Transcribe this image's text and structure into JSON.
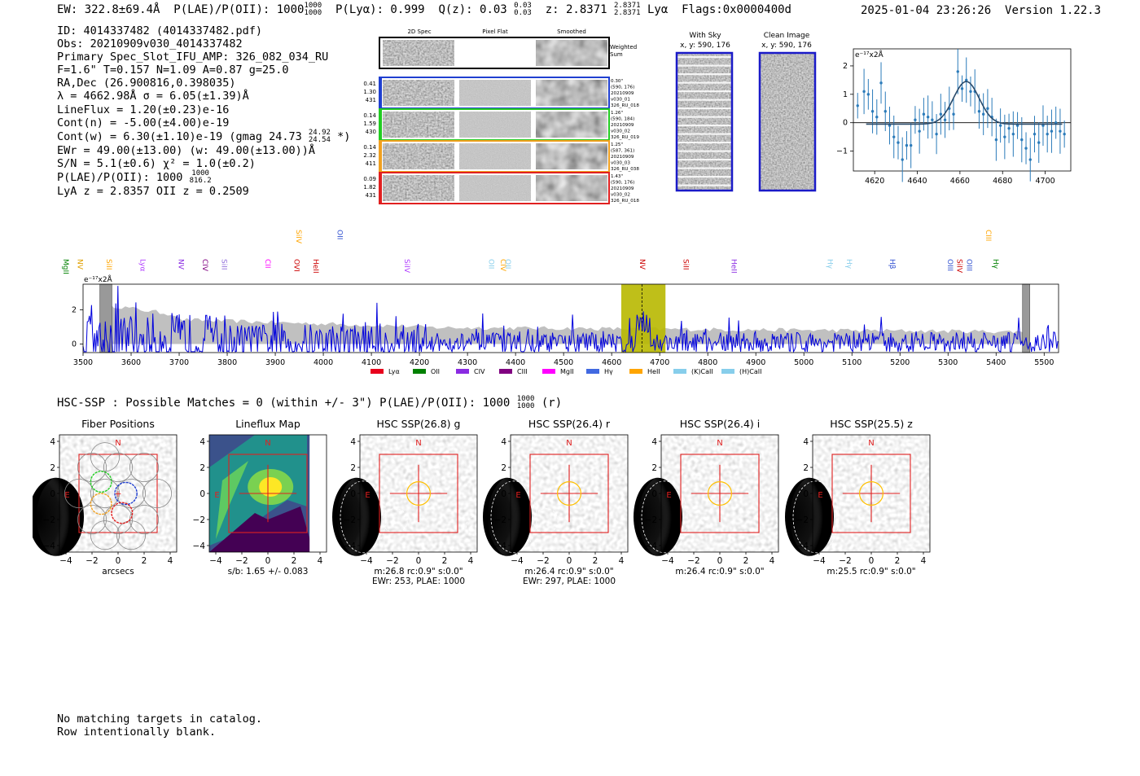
{
  "header": {
    "ew": "EW: 322.8±69.4Å",
    "plae_label": "P(LAE)/P(OII): 1000",
    "plae_hi": "1000",
    "plae_lo": "1000",
    "plya": "P(Lyα): 0.999",
    "qz_label": "Q(z): 0.03",
    "qz_hi": "0.03",
    "qz_lo": "0.03",
    "z_label": "z: 2.8371",
    "z_hi": "2.8371",
    "z_lo": "2.8371",
    "z_line": "Lyα",
    "flags": "Flags:0x0000400d",
    "datetime": "2025-01-04 23:26:26",
    "version": "Version 1.22.3"
  },
  "info": {
    "id": "ID: 4014337482 (4014337482.pdf)",
    "obs": "Obs: 20210909v030_4014337482",
    "primary": "Primary Spec_Slot_IFU_AMP: 326_082_034_RU",
    "fwhm": "F=1.6\"  T=0.157  N=1.09  A=0.87  g=25.0",
    "radec": "RA,Dec (26.900816,0.398035)",
    "lambda": "λ = 4662.98Å  σ = 6.05(±1.39)Å",
    "lineflux": "LineFlux = 1.20(±0.23)e-16",
    "contn": "Cont(n) = -5.00(±4.00)e-19",
    "contw": "Cont(w) = 6.30(±1.10)e-19 (gmag 24.73",
    "gmag_hi": "24.92",
    "gmag_lo": "24.54",
    "contw_end": "*)",
    "ewr": "EWr = 49.00(±13.00) (w: 49.00(±13.00))Å",
    "sn": "S/N = 5.1(±0.6)  χ² = 1.0(±0.2)",
    "plae": "P(LAE)/P(OII): 1000",
    "plae_hi": "1000",
    "plae_lo": "816.2",
    "lyaz": "LyA z = 2.8357  OII z = 0.2509"
  },
  "cutouts": {
    "col_titles": [
      "2D Spec",
      "Pixel Flat",
      "Smoothed"
    ],
    "weighted_sum": "Weighted Sum",
    "rows": [
      {
        "left": [
          "0.41",
          "1.30",
          "431"
        ],
        "right": [
          "0.30\"",
          "(590, 176)",
          "20210909",
          "v030_01",
          "326_RU_018"
        ],
        "color": "#1f3fd0"
      },
      {
        "left": [
          "0.14",
          "1.59",
          "430"
        ],
        "right": [
          "1.26\"",
          "(590, 184)",
          "20210909",
          "v030_02",
          "326_RU_019"
        ],
        "color": "#22cc22"
      },
      {
        "left": [
          "0.14",
          "2.32",
          "411"
        ],
        "right": [
          "1.25\"",
          "(587, 361)",
          "20210909",
          "v030_03",
          "326_RU_038"
        ],
        "color": "#f0a020"
      },
      {
        "left": [
          "0.09",
          "1.82",
          "431"
        ],
        "right": [
          "1.43\"",
          "(590, 176)",
          "20210909",
          "v030_02",
          "326_RU_018"
        ],
        "color": "#e02020"
      }
    ],
    "with_sky_title": "With Sky",
    "with_sky_coords": "x, y: 590, 176",
    "clean_title": "Clean Image",
    "clean_coords": "x, y: 590, 176"
  },
  "zoom_plot": {
    "unit_label": "e⁻¹⁷x2Å",
    "xticks": [
      "4620",
      "4640",
      "4660",
      "4680",
      "4700"
    ],
    "yticks": [
      "2",
      "1",
      "0",
      "−1"
    ],
    "xlim": [
      4610,
      4712
    ],
    "ylim": [
      -1.7,
      2.6
    ],
    "points_x": [
      4612,
      4615,
      4617,
      4619,
      4621,
      4623,
      4625,
      4627,
      4629,
      4631,
      4633,
      4635,
      4637,
      4639,
      4641,
      4643,
      4645,
      4647,
      4649,
      4651,
      4653,
      4655,
      4657,
      4659,
      4661,
      4663,
      4665,
      4667,
      4669,
      4671,
      4673,
      4675,
      4677,
      4679,
      4681,
      4683,
      4685,
      4687,
      4689,
      4691,
      4693,
      4695,
      4697,
      4699,
      4701,
      4703,
      4705,
      4707,
      4709
    ],
    "points_y": [
      0.6,
      1.1,
      1.0,
      0.4,
      0.2,
      1.4,
      0.4,
      -0.1,
      -0.5,
      -0.7,
      -1.3,
      -0.8,
      -0.8,
      0.1,
      -0.3,
      0.3,
      0.2,
      0.1,
      -0.4,
      0.3,
      0.1,
      0.5,
      0.3,
      1.8,
      1.2,
      1.5,
      1.1,
      1.1,
      0.4,
      0.3,
      0.5,
      0.2,
      -0.6,
      -0.1,
      -0.5,
      -0.2,
      -0.4,
      -0.1,
      -0.6,
      -0.9,
      -1.3,
      -0.4,
      -0.7,
      -0.1,
      -0.4,
      -0.3,
      0.0,
      -0.3,
      -0.4
    ],
    "fit_center": 4662.98,
    "fit_sigma": 6.05,
    "fit_amp": 1.5,
    "fit_base": -0.05
  },
  "line_labels": [
    {
      "name": "MgII",
      "x": 2799,
      "color": "#008000",
      "row": 1
    },
    {
      "name": "NV",
      "x": 1240,
      "color": "#e0a000",
      "row": 1
    },
    {
      "name": "SiII",
      "x": 1260,
      "color": "#ffa500",
      "row": 1
    },
    {
      "name": "Lyα",
      "x": 1216,
      "color": "#b03cff",
      "row": 1
    },
    {
      "name": "NV",
      "x": 1240,
      "color": "#8a2be2",
      "row": 1
    },
    {
      "name": "CIV",
      "x": 1549,
      "color": "#800080",
      "row": 1
    },
    {
      "name": "SiII",
      "x": 1260,
      "color": "#9370db",
      "row": 1
    },
    {
      "name": "CII",
      "x": 1335,
      "color": "#ff00ff",
      "row": 1
    },
    {
      "name": "OVI",
      "x": 1034,
      "color": "#cc0000",
      "row": 1
    },
    {
      "name": "SiIV",
      "x": 1400,
      "color": "#ffa500",
      "row": 0
    },
    {
      "name": "HeII",
      "x": 1640,
      "color": "#cc0000",
      "row": 1
    },
    {
      "name": "OII",
      "x": 3727,
      "color": "#3050d0",
      "row": 0
    },
    {
      "name": "SiIV",
      "x": 1400,
      "color": "#b03cff",
      "row": 1
    },
    {
      "name": "OII",
      "x": 3727,
      "color": "#87ceeb",
      "row": 1
    },
    {
      "name": "CIV",
      "x": 1549,
      "color": "#ffa500",
      "row": 1
    },
    {
      "name": "OII",
      "x": 3727,
      "color": "#87ceeb",
      "row": 1
    },
    {
      "name": "NV",
      "x": 1240,
      "color": "#cc0000",
      "row": 1
    },
    {
      "name": "SiII",
      "x": 1260,
      "color": "#cc0000",
      "row": 1
    },
    {
      "name": "HeII",
      "x": 1640,
      "color": "#8a2be2",
      "row": 1
    },
    {
      "name": "Hγ",
      "x": 4341,
      "color": "#87ceeb",
      "row": 1
    },
    {
      "name": "Hγ",
      "x": 4341,
      "color": "#87ceeb",
      "row": 1
    },
    {
      "name": "Hβ",
      "x": 4861,
      "color": "#3050d0",
      "row": 1
    },
    {
      "name": "OIII",
      "x": 5007,
      "color": "#3050d0",
      "row": 1
    },
    {
      "name": "SiIV",
      "x": 1400,
      "color": "#cc0000",
      "row": 1
    },
    {
      "name": "OIII",
      "x": 5007,
      "color": "#3050d0",
      "row": 1
    },
    {
      "name": "CIII",
      "x": 1909,
      "color": "#ffa500",
      "row": 0
    },
    {
      "name": "Hγ",
      "x": 4341,
      "color": "#008000",
      "row": 1
    }
  ],
  "full_spectrum": {
    "unit_label": "e⁻¹⁷x2Å",
    "xticks": [
      "3500",
      "3600",
      "3700",
      "3800",
      "3900",
      "4000",
      "4100",
      "4200",
      "4300",
      "4400",
      "4500",
      "4600",
      "4700",
      "4800",
      "4900",
      "5000",
      "5100",
      "5200",
      "5300",
      "5400",
      "5500"
    ],
    "yticks": [
      "2",
      "0"
    ],
    "xlim": [
      3500,
      5530
    ],
    "ylim": [
      -0.5,
      3.5
    ],
    "highlight": [
      4620,
      4712
    ],
    "line_center": 4663,
    "legend": [
      {
        "label": "Lyα",
        "color": "#e8001c"
      },
      {
        "label": "OII",
        "color": "#008000"
      },
      {
        "label": "CIV",
        "color": "#8a2be2"
      },
      {
        "label": "CIII",
        "color": "#800080"
      },
      {
        "label": "MgII",
        "color": "#ff00ff"
      },
      {
        "label": "Hγ",
        "color": "#4169e1"
      },
      {
        "label": "HeII",
        "color": "#ffa500"
      },
      {
        "label": "(K)CaII",
        "color": "#87ceeb"
      },
      {
        "label": "(H)CaII",
        "color": "#87ceeb"
      }
    ]
  },
  "hsc": {
    "title": "HSC-SSP : Possible Matches = 0 (within +/- 3\")  P(LAE)/P(OII): 1000",
    "title_hi": "1000",
    "title_lo": "1000",
    "title_end": "(r)",
    "panels": [
      {
        "title": "Fiber Positions",
        "caption1": "arcsecs",
        "caption2": "",
        "type": "fiber"
      },
      {
        "title": "Lineflux Map",
        "caption1": "s/b: 1.65 +/- 0.083",
        "caption2": "",
        "type": "flux"
      },
      {
        "title": "HSC SSP(26.8) g",
        "caption1": "m:26.8 rc:0.9\"  s:0.0\"",
        "caption2": "EWr: 253, PLAE: 1000",
        "type": "hsc"
      },
      {
        "title": "HSC SSP(26.4) r",
        "caption1": "m:26.4 rc:0.9\"  s:0.0\"",
        "caption2": "EWr: 297, PLAE: 1000",
        "type": "hsc"
      },
      {
        "title": "HSC SSP(26.4) i",
        "caption1": "m:26.4 rc:0.9\"  s:0.0\"",
        "caption2": "",
        "type": "hsc"
      },
      {
        "title": "HSC SSP(25.5) z",
        "caption1": "m:25.5 rc:0.9\"  s:0.0\"",
        "caption2": "",
        "type": "hsc"
      }
    ],
    "xticks": [
      "−4",
      "−2",
      "0",
      "2",
      "4"
    ],
    "yticks": [
      "4",
      "2",
      "0",
      "−2",
      "−4"
    ],
    "north": "N",
    "east": "E"
  },
  "footer": {
    "line1": "No matching targets in catalog.",
    "line2": "Row intentionally blank."
  }
}
